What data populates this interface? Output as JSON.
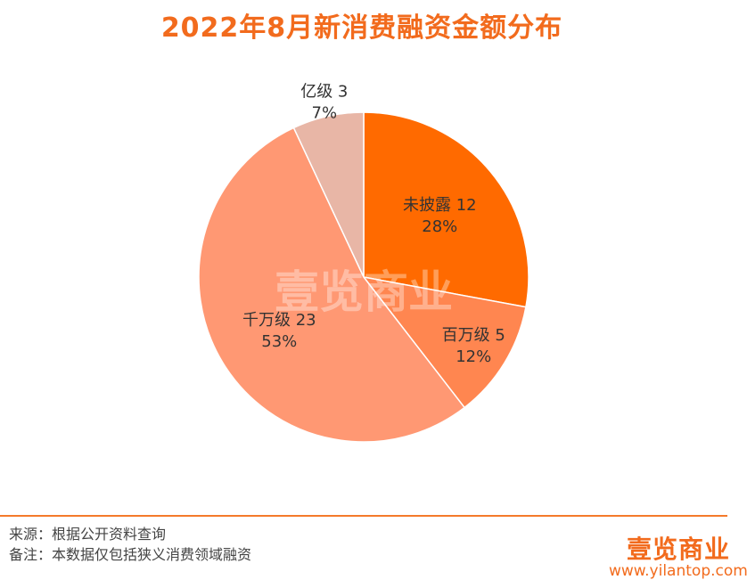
{
  "chart_data": {
    "type": "pie",
    "title": "2022年8月新消费融资金额分布",
    "slices": [
      {
        "name": "未披露",
        "count": 12,
        "percent_label": "28%",
        "color": "#FF6A00"
      },
      {
        "name": "百万级",
        "count": 5,
        "percent_label": "12%",
        "color": "#FF8650"
      },
      {
        "name": "千万级",
        "count": 23,
        "percent_label": "53%",
        "color": "#FF9873"
      },
      {
        "name": "亿级",
        "count": 3,
        "percent_label": "7%",
        "color": "#E8B6A6"
      }
    ]
  },
  "watermark": "壹览商业",
  "footer": {
    "source": "来源：根据公开资料查询",
    "note": "备注：本数据仅包括狭义消费领域融资",
    "brand": "壹览商业",
    "site": "www.yilantop.com"
  },
  "colors": {
    "accent": "#F26B1D",
    "title": "#F26B1D",
    "rule": "#F47A2B"
  }
}
